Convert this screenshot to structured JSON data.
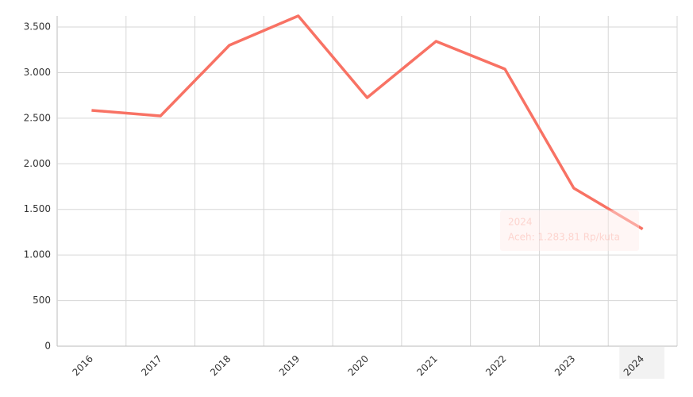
{
  "chart_data": {
    "type": "line",
    "categories": [
      "2016",
      "2017",
      "2018",
      "2019",
      "2020",
      "2021",
      "2022",
      "2023",
      "2024"
    ],
    "values": [
      2586,
      2525,
      3300,
      3622,
      2725,
      3343,
      3039,
      1733,
      1283.81
    ],
    "color": "#f87264",
    "ylim": [
      0,
      3622
    ],
    "yticks": [
      0,
      500,
      {
        "value": 1000,
        "label": "1.000"
      },
      {
        "value": 1500,
        "label": "1.500"
      },
      {
        "value": 2000,
        "label": "2.000"
      },
      {
        "value": 2500,
        "label": "2.500"
      },
      {
        "value": 3000,
        "label": "3.000"
      },
      {
        "value": 3500,
        "label": "3.500"
      }
    ],
    "grid": true,
    "tooltip": "Aceh: 1.283,81 Rp/kuta"
  }
}
